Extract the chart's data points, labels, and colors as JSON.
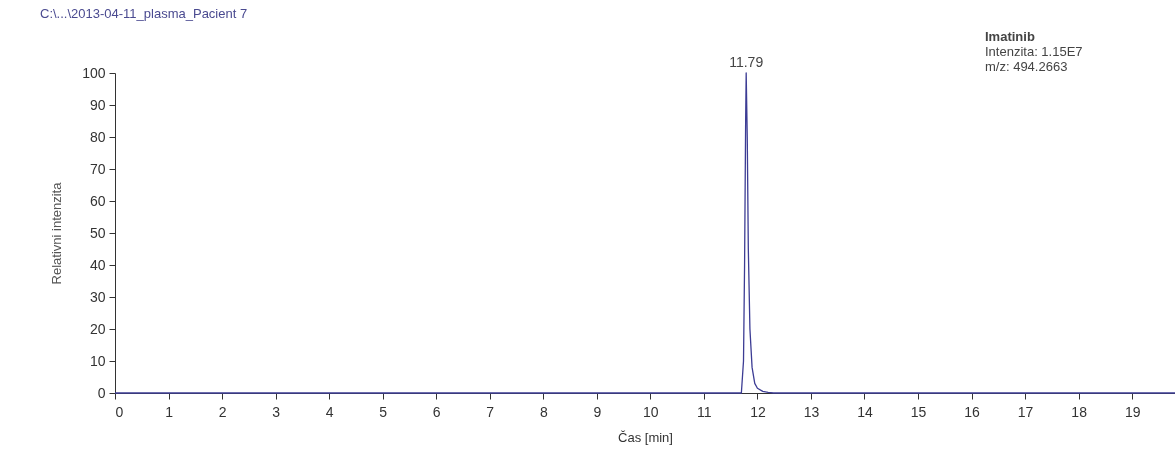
{
  "chart_data": {
    "type": "line",
    "title": "C:\\...\\2013-04-11_plasma_Pacient 7",
    "xlabel": "Čas [min]",
    "ylabel": "Relativni intenzita",
    "x": [
      0,
      11.7,
      11.74,
      11.76,
      11.78,
      11.79,
      11.81,
      11.83,
      11.86,
      11.9,
      11.95,
      12.0,
      12.1,
      12.2,
      12.3,
      19.8
    ],
    "series": [
      {
        "color": "#3c3c94",
        "values": [
          0,
          0,
          10,
          40,
          85,
          100,
          80,
          45,
          20,
          8,
          3,
          1.5,
          0.5,
          0.2,
          0,
          0
        ]
      }
    ],
    "xlim": [
      0,
      19.8
    ],
    "ylim": [
      0,
      100
    ],
    "xticks": [
      0,
      1,
      2,
      3,
      4,
      5,
      6,
      7,
      8,
      9,
      10,
      11,
      12,
      13,
      14,
      15,
      16,
      17,
      18,
      19
    ],
    "yticks": [
      0,
      10,
      20,
      30,
      40,
      50,
      60,
      70,
      80,
      90,
      100
    ],
    "annotations": [
      {
        "text": "11.79",
        "x": 11.79,
        "y": 100
      },
      "Imatinib",
      "Intenzita: 1.15E7",
      "m/z: 494.2663"
    ]
  }
}
